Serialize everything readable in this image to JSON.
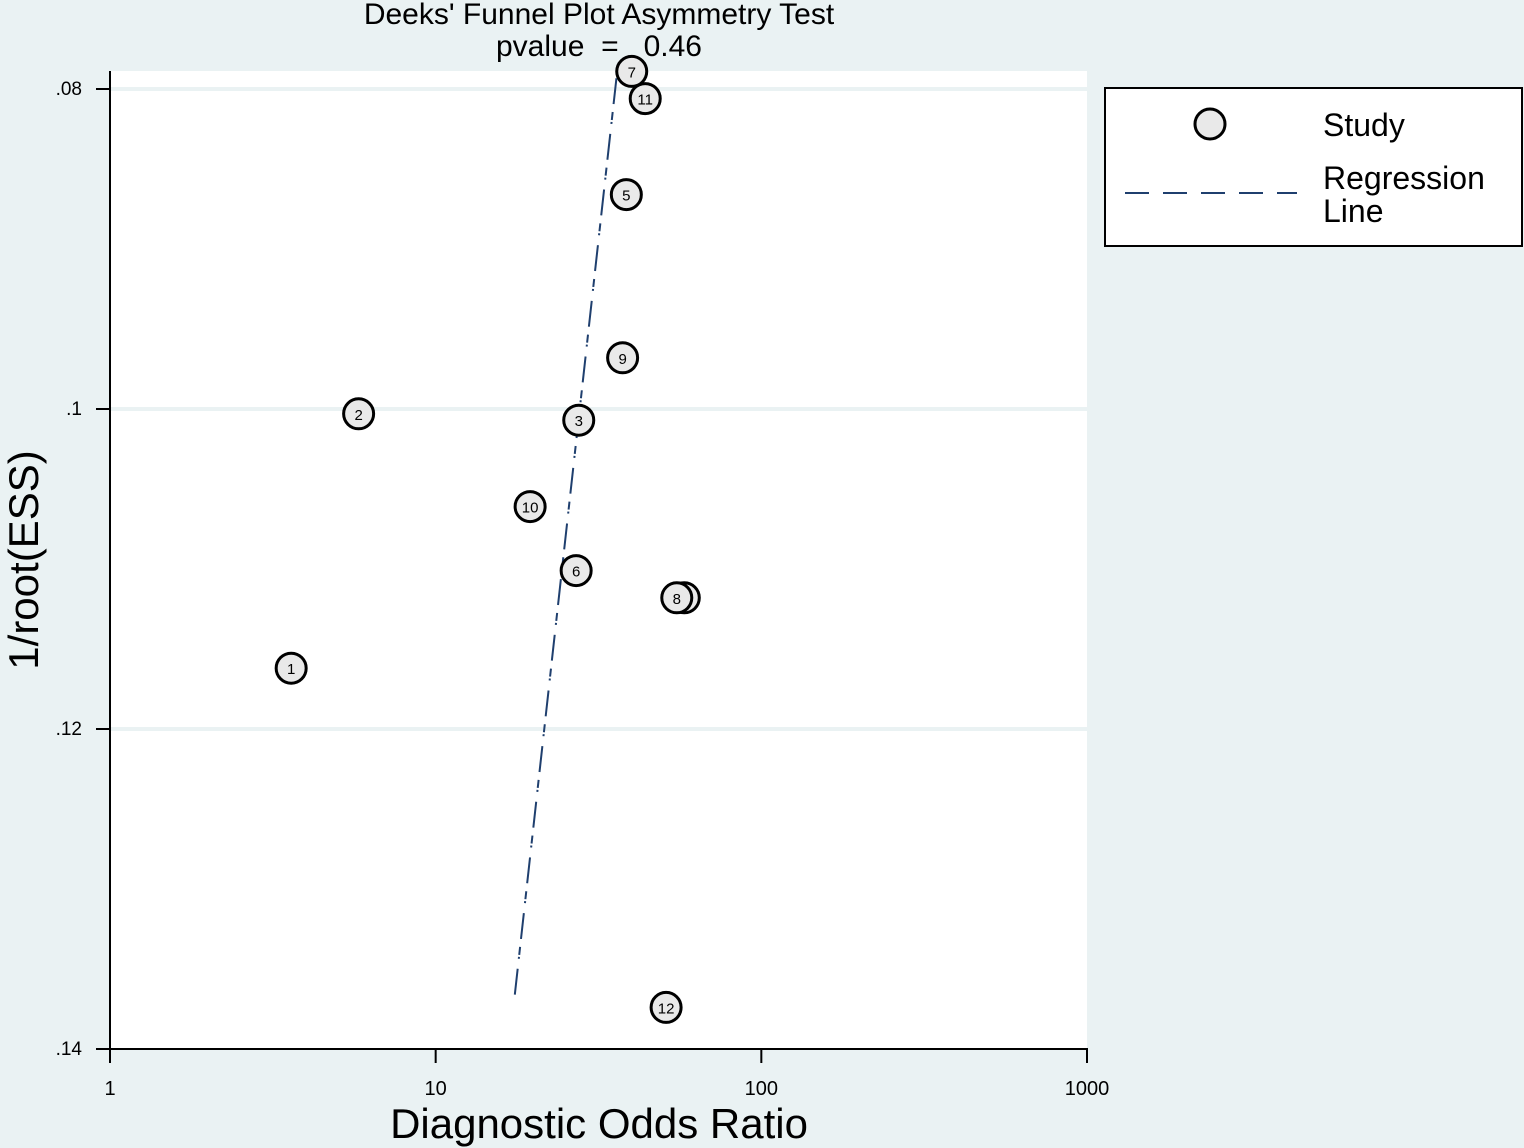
{
  "chart_data": {
    "type": "scatter",
    "title": "Deeks' Funnel Plot Asymmetry Test",
    "subtitle": "pvalue  =   0.46",
    "xlabel": "Diagnostic Odds Ratio",
    "ylabel": "1/root(ESS)",
    "x_scale": "log",
    "xlim": [
      1,
      1000
    ],
    "ylim": [
      0.14,
      0.079
    ],
    "y_reversed": true,
    "x_ticks": [
      1,
      10,
      100,
      1000
    ],
    "x_tick_labels": [
      "1",
      "10",
      "100",
      "1000"
    ],
    "y_ticks": [
      0.08,
      0.1,
      0.12,
      0.14
    ],
    "y_tick_labels": [
      ".08",
      ".1",
      ".12",
      ".14"
    ],
    "grid": true,
    "legend_position": "right",
    "series": [
      {
        "name": "Study",
        "points": [
          {
            "label": "1",
            "x": 3.6,
            "y": 0.1162
          },
          {
            "label": "2",
            "x": 5.8,
            "y": 0.1003
          },
          {
            "label": "3",
            "x": 27.5,
            "y": 0.1007
          },
          {
            "label": "4",
            "x": 58,
            "y": 0.1118
          },
          {
            "label": "5",
            "x": 38.5,
            "y": 0.0866
          },
          {
            "label": "6",
            "x": 27,
            "y": 0.1101
          },
          {
            "label": "7",
            "x": 40,
            "y": 0.0789
          },
          {
            "label": "8",
            "x": 55,
            "y": 0.1118
          },
          {
            "label": "9",
            "x": 37.5,
            "y": 0.0968
          },
          {
            "label": "10",
            "x": 19.5,
            "y": 0.1061
          },
          {
            "label": "11",
            "x": 44,
            "y": 0.0806
          },
          {
            "label": "12",
            "x": 51,
            "y": 0.1374
          }
        ]
      },
      {
        "name": "Regression Line",
        "line": {
          "x": [
            17.5,
            36
          ],
          "y": [
            0.1366,
            0.0791
          ]
        }
      }
    ],
    "legend": [
      {
        "label": "Study",
        "symbol": "circle"
      },
      {
        "label": "Regression\nLine",
        "line1": "Regression",
        "line2": "Line",
        "symbol": "dashed-line"
      }
    ],
    "colors": {
      "background": "#eaf2f3",
      "plot_background": "#ffffff",
      "grid": "#eaf2f3",
      "marker_fill": "#e9e9e9",
      "marker_stroke": "#000000",
      "regression_line": "#1f3f6e"
    }
  }
}
